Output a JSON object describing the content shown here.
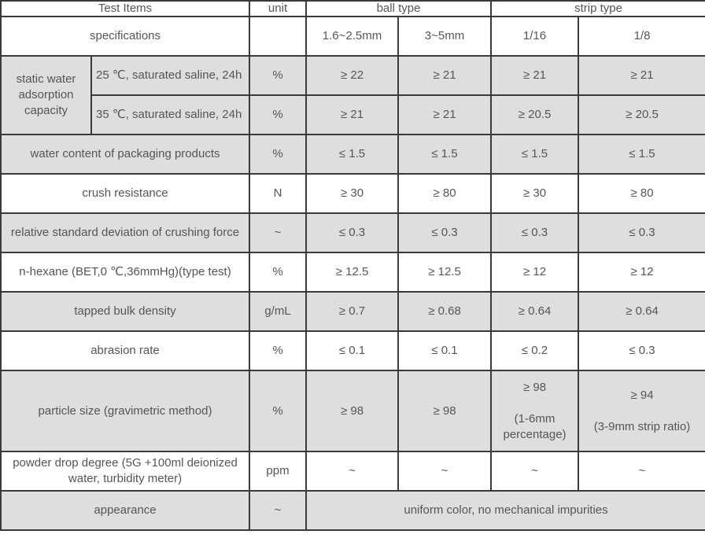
{
  "table": {
    "header": [
      "Test Items",
      "unit",
      "ball type",
      "strip type"
    ],
    "specifications": [
      "specifications",
      "1.6~2.5mm",
      "3~5mm",
      "1/16",
      "1/8"
    ],
    "rows": [
      [
        "static water adsorption capacity",
        "25 ℃, saturated saline, 24h",
        "%",
        "≥ 22",
        "≥ 21",
        "≥ 21",
        "≥ 21"
      ],
      [
        "35 ℃, saturated saline, 24h",
        "%",
        "≥ 21",
        "≥ 21",
        "≥ 20.5",
        "≥ 20.5"
      ],
      [
        "water content of packaging products",
        "%",
        "≤ 1.5",
        "≤ 1.5",
        "≤ 1.5",
        "≤ 1.5"
      ],
      [
        "crush resistance",
        "N",
        "≥ 30",
        "≥ 80",
        "≥ 30",
        "≥ 80"
      ],
      [
        "relative standard deviation of crushing force",
        "~",
        "≤ 0.3",
        "≤ 0.3",
        "≤ 0.3",
        "≤ 0.3"
      ],
      [
        "n-hexane (BET,0 ℃,36mmHg)(type test)",
        "%",
        "≥ 12.5",
        "≥ 12.5",
        "≥ 12",
        "≥ 12"
      ],
      [
        "tapped bulk density",
        "g/mL",
        "≥ 0.7",
        "≥ 0.68",
        "≥ 0.64",
        "≥ 0.64"
      ],
      [
        "abrasion rate",
        "%",
        "≤ 0.1",
        "≤ 0.1",
        "≤ 0.2",
        "≤ 0.3"
      ],
      [
        "particle size (gravimetric method)",
        "%",
        "≥ 98",
        "≥ 98",
        "≥ 98",
        "(1-6mm percentage)",
        "≥ 94",
        "(3-9mm strip ratio)"
      ],
      [
        "powder drop degree (5G +100ml deionized water, turbidity meter)",
        "ppm",
        "~",
        "~",
        "~",
        "~"
      ],
      [
        "appearance",
        "~",
        "uniform color, no mechanical impurities"
      ]
    ]
  }
}
